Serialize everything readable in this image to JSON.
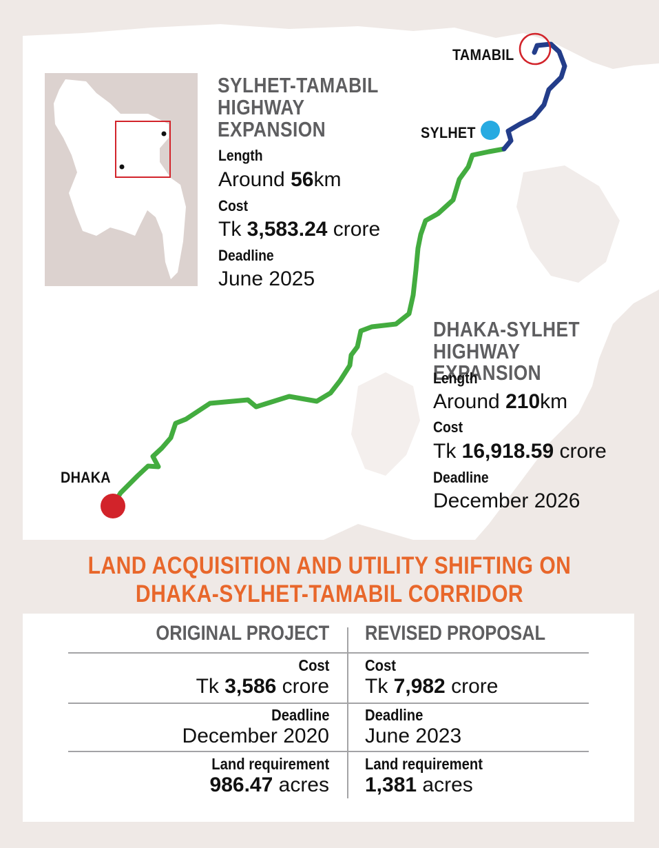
{
  "colors": {
    "background": "#efe9e6",
    "land": "#ffffff",
    "dhaka_sylhet_route": "#43ac3f",
    "sylhet_tamabil_route": "#233d8a",
    "dhaka_marker": "#d2232a",
    "sylhet_marker": "#27aae1",
    "tamabil_ring": "#d2232a",
    "heading": "#e8672b",
    "title_grey": "#5e5e60"
  },
  "map": {
    "cities": {
      "tamabil": "TAMABIL",
      "sylhet": "SYLHET",
      "dhaka": "DHAKA"
    },
    "sylhet_tamabil": {
      "title_lines": [
        "SYLHET-TAMABIL",
        "HIGHWAY",
        "EXPANSION"
      ],
      "length_label": "Length",
      "length_prefix": "Around ",
      "length_value": "56",
      "length_unit": "km",
      "cost_label": "Cost",
      "cost_prefix": "Tk ",
      "cost_value": "3,583.24",
      "cost_unit": " crore",
      "deadline_label": "Deadline",
      "deadline_value": "June 2025"
    },
    "dhaka_sylhet": {
      "title_lines": [
        "DHAKA-SYLHET",
        "HIGHWAY EXPANSION"
      ],
      "length_label": "Length",
      "length_prefix": "Around ",
      "length_value": "210",
      "length_unit": "km",
      "cost_label": "Cost",
      "cost_prefix": "Tk ",
      "cost_value": "16,918.59",
      "cost_unit": " crore",
      "deadline_label": "Deadline",
      "deadline_value": "December 2026"
    }
  },
  "section": {
    "heading_lines": [
      "LAND ACQUISITION AND UTILITY SHIFTING ON",
      "DHAKA-SYLHET-TAMABIL CORRIDOR"
    ]
  },
  "table": {
    "columns": [
      "ORIGINAL PROJECT",
      "REVISED PROPOSAL"
    ],
    "rows": [
      {
        "label": "Cost",
        "original": {
          "prefix": "Tk ",
          "value": "3,586",
          "unit": " crore"
        },
        "revised": {
          "prefix": "Tk ",
          "value": "7,982",
          "unit": " crore"
        }
      },
      {
        "label": "Deadline",
        "original": {
          "prefix": "",
          "value": "",
          "unit": "December 2020"
        },
        "revised": {
          "prefix": "",
          "value": "",
          "unit": "June 2023"
        }
      },
      {
        "label": "Land requirement",
        "original": {
          "prefix": "",
          "value": "986.47",
          "unit": " acres"
        },
        "revised": {
          "prefix": "",
          "value": "1,381",
          "unit": " acres"
        }
      }
    ]
  }
}
